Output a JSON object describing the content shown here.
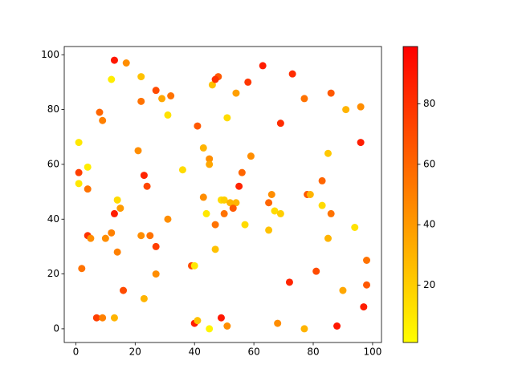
{
  "chart_data": {
    "type": "scatter",
    "x": [
      13,
      17,
      12,
      22,
      27,
      29,
      32,
      22,
      8,
      9,
      31,
      46,
      48,
      47,
      58,
      63,
      73,
      77,
      86,
      91,
      96,
      54,
      41,
      51,
      69,
      1,
      21,
      43,
      45,
      45,
      59,
      85,
      96,
      1,
      4,
      1,
      4,
      36,
      23,
      24,
      56,
      55,
      14,
      15,
      13,
      43,
      49,
      50,
      52,
      54,
      50,
      53,
      44,
      47,
      57,
      66,
      65,
      67,
      69,
      65,
      78,
      79,
      83,
      83,
      86,
      85,
      94,
      4,
      5,
      10,
      12,
      22,
      25,
      31,
      14,
      27,
      2,
      39,
      40,
      47,
      27,
      16,
      23,
      7,
      9,
      13,
      40,
      41,
      45,
      49,
      51,
      68,
      72,
      81,
      77,
      88,
      90,
      98,
      98,
      97
    ],
    "values": [
      98,
      97,
      91,
      92,
      87,
      84,
      85,
      83,
      79,
      76,
      78,
      89,
      92,
      91,
      90,
      96,
      93,
      84,
      86,
      80,
      81,
      86,
      74,
      77,
      75,
      68,
      65,
      66,
      62,
      60,
      63,
      64,
      68,
      57,
      59,
      53,
      51,
      58,
      56,
      52,
      57,
      52,
      47,
      44,
      42,
      48,
      47,
      47,
      46,
      46,
      42,
      44,
      42,
      38,
      38,
      49,
      46,
      43,
      42,
      36,
      49,
      49,
      54,
      45,
      42,
      33,
      37,
      34,
      33,
      33,
      35,
      34,
      34,
      40,
      28,
      30,
      22,
      23,
      23,
      29,
      20,
      14,
      11,
      4,
      4,
      4,
      2,
      3,
      0,
      4,
      1,
      2,
      17,
      21,
      0,
      1,
      14,
      25,
      16,
      8
    ],
    "color_values": [
      90,
      45,
      8,
      25,
      70,
      35,
      55,
      55,
      60,
      50,
      12,
      25,
      65,
      80,
      78,
      88,
      82,
      55,
      65,
      30,
      45,
      38,
      65,
      15,
      82,
      10,
      45,
      30,
      45,
      35,
      45,
      22,
      88,
      75,
      8,
      10,
      55,
      15,
      85,
      72,
      60,
      85,
      15,
      40,
      88,
      45,
      15,
      20,
      30,
      30,
      55,
      65,
      10,
      55,
      15,
      45,
      60,
      15,
      20,
      25,
      65,
      30,
      60,
      15,
      55,
      30,
      12,
      80,
      45,
      45,
      50,
      45,
      55,
      45,
      50,
      75,
      55,
      70,
      10,
      25,
      45,
      70,
      30,
      75,
      50,
      30,
      88,
      25,
      5,
      90,
      45,
      45,
      85,
      70,
      30,
      90,
      35,
      55,
      65,
      88
    ],
    "xlim": [
      -3.9,
      103
    ],
    "ylim": [
      -5,
      103
    ],
    "xticks": [
      0,
      20,
      40,
      60,
      80,
      100
    ],
    "yticks": [
      0,
      20,
      40,
      60,
      80,
      100
    ],
    "colormap": [
      "#ffff00",
      "#ff0000"
    ],
    "clim": [
      1,
      99
    ],
    "cticks": [
      20,
      40,
      60,
      80
    ]
  }
}
